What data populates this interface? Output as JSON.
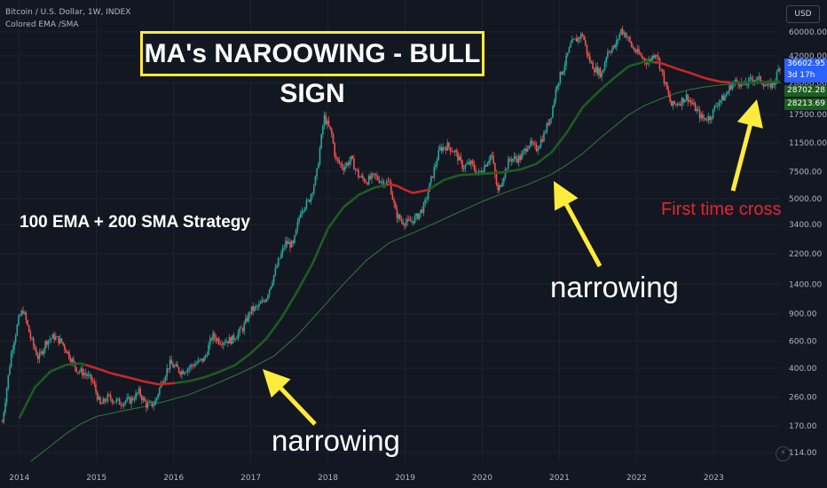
{
  "header": {
    "symbol_line": "Bitcoin / U.S. Dollar, 1W, INDEX",
    "indicator_line": "Colored EMA /SMA"
  },
  "title": "MA's NAROOWING - BULL SIGN",
  "strategy_label": "100 EMA + 200 SMA Strategy",
  "annotations": {
    "narrowing_1": "narrowing",
    "narrowing_2": "narrowing",
    "first_cross": "First time cross"
  },
  "price_scale": {
    "currency": "USD",
    "current_price": "36602.95",
    "countdown": "3d 17h",
    "ema_value": "28702.28",
    "sma_value": "28213.69",
    "ticks": [
      "60000.00",
      "42000.00",
      "28000.00",
      "17500.00",
      "11500.00",
      "7500.00",
      "5000.00",
      "3400.00",
      "2200.00",
      "1400.00",
      "900.00",
      "600.00",
      "400.00",
      "260.00",
      "170.00",
      "114.00"
    ]
  },
  "colors": {
    "background": "#131722",
    "candle_up": "#26a69a",
    "candle_down": "#ef5350",
    "ema_bull": "#1b5e20",
    "ema_bear": "#c62828",
    "sma": "#2e7d32",
    "arrow": "#ffeb3b",
    "cross_text": "#e8242c"
  },
  "chart_data": {
    "type": "line",
    "scale": "log",
    "x_axis_labels": [
      "2014",
      "2015",
      "2016",
      "2017",
      "2018",
      "2019",
      "2020",
      "2021",
      "2022",
      "2023"
    ],
    "y_ticks": [
      60000,
      42000,
      28000,
      17500,
      11500,
      7500,
      5000,
      3400,
      2200,
      1400,
      900,
      600,
      400,
      260,
      170,
      114
    ],
    "ylim": [
      100,
      75000
    ],
    "xlim": [
      2013.75,
      2023.87
    ],
    "series": [
      {
        "key": "price",
        "points": [
          [
            2013.78,
            180
          ],
          [
            2013.9,
            520
          ],
          [
            2014.0,
            860
          ],
          [
            2014.05,
            950
          ],
          [
            2014.15,
            620
          ],
          [
            2014.25,
            460
          ],
          [
            2014.35,
            600
          ],
          [
            2014.45,
            640
          ],
          [
            2014.55,
            590
          ],
          [
            2014.65,
            480
          ],
          [
            2014.75,
            390
          ],
          [
            2014.85,
            370
          ],
          [
            2014.95,
            330
          ],
          [
            2015.05,
            230
          ],
          [
            2015.15,
            260
          ],
          [
            2015.3,
            240
          ],
          [
            2015.45,
            250
          ],
          [
            2015.55,
            280
          ],
          [
            2015.65,
            230
          ],
          [
            2015.75,
            235
          ],
          [
            2015.85,
            330
          ],
          [
            2015.95,
            430
          ],
          [
            2016.1,
            380
          ],
          [
            2016.25,
            420
          ],
          [
            2016.4,
            460
          ],
          [
            2016.5,
            650
          ],
          [
            2016.6,
            600
          ],
          [
            2016.75,
            610
          ],
          [
            2016.9,
            730
          ],
          [
            2017.0,
            950
          ],
          [
            2017.1,
            1000
          ],
          [
            2017.2,
            1150
          ],
          [
            2017.35,
            1900
          ],
          [
            2017.45,
            2600
          ],
          [
            2017.55,
            2500
          ],
          [
            2017.65,
            4300
          ],
          [
            2017.75,
            4800
          ],
          [
            2017.85,
            7000
          ],
          [
            2017.95,
            17000
          ],
          [
            2018.05,
            13000
          ],
          [
            2018.1,
            9000
          ],
          [
            2018.2,
            8000
          ],
          [
            2018.3,
            9000
          ],
          [
            2018.4,
            7000
          ],
          [
            2018.5,
            6500
          ],
          [
            2018.6,
            7000
          ],
          [
            2018.7,
            6500
          ],
          [
            2018.8,
            6300
          ],
          [
            2018.88,
            4000
          ],
          [
            2018.95,
            3600
          ],
          [
            2019.05,
            3500
          ],
          [
            2019.15,
            3800
          ],
          [
            2019.25,
            4500
          ],
          [
            2019.35,
            7000
          ],
          [
            2019.45,
            10500
          ],
          [
            2019.55,
            11000
          ],
          [
            2019.65,
            10000
          ],
          [
            2019.75,
            8000
          ],
          [
            2019.85,
            8500
          ],
          [
            2019.95,
            7200
          ],
          [
            2020.05,
            8500
          ],
          [
            2020.12,
            9800
          ],
          [
            2020.2,
            5500
          ],
          [
            2020.25,
            6500
          ],
          [
            2020.35,
            9000
          ],
          [
            2020.5,
            9200
          ],
          [
            2020.6,
            11500
          ],
          [
            2020.7,
            10500
          ],
          [
            2020.8,
            13000
          ],
          [
            2020.9,
            18000
          ],
          [
            2020.97,
            28000
          ],
          [
            2021.05,
            35000
          ],
          [
            2021.15,
            50000
          ],
          [
            2021.3,
            58000
          ],
          [
            2021.38,
            40000
          ],
          [
            2021.45,
            35000
          ],
          [
            2021.55,
            32000
          ],
          [
            2021.62,
            45000
          ],
          [
            2021.72,
            48000
          ],
          [
            2021.8,
            62000
          ],
          [
            2021.87,
            57000
          ],
          [
            2021.95,
            47000
          ],
          [
            2022.05,
            42000
          ],
          [
            2022.15,
            38000
          ],
          [
            2022.25,
            45000
          ],
          [
            2022.35,
            30000
          ],
          [
            2022.45,
            20000
          ],
          [
            2022.55,
            21000
          ],
          [
            2022.65,
            23000
          ],
          [
            2022.75,
            19500
          ],
          [
            2022.85,
            16500
          ],
          [
            2022.95,
            16800
          ],
          [
            2023.05,
            21000
          ],
          [
            2023.15,
            23000
          ],
          [
            2023.22,
            27000
          ],
          [
            2023.3,
            29000
          ],
          [
            2023.4,
            27000
          ],
          [
            2023.5,
            30000
          ],
          [
            2023.6,
            29500
          ],
          [
            2023.7,
            26500
          ],
          [
            2023.78,
            28000
          ],
          [
            2023.84,
            34500
          ],
          [
            2023.87,
            36600
          ]
        ]
      },
      {
        "key": "ema100",
        "points": [
          [
            2014.0,
            190
          ],
          [
            2014.2,
            300
          ],
          [
            2014.4,
            380
          ],
          [
            2014.6,
            420
          ],
          [
            2014.8,
            430
          ],
          [
            2015.0,
            400
          ],
          [
            2015.2,
            370
          ],
          [
            2015.4,
            350
          ],
          [
            2015.6,
            330
          ],
          [
            2015.8,
            315
          ],
          [
            2016.0,
            320
          ],
          [
            2016.2,
            330
          ],
          [
            2016.4,
            350
          ],
          [
            2016.6,
            380
          ],
          [
            2016.8,
            420
          ],
          [
            2017.0,
            500
          ],
          [
            2017.2,
            620
          ],
          [
            2017.4,
            850
          ],
          [
            2017.6,
            1250
          ],
          [
            2017.8,
            1900
          ],
          [
            2018.0,
            3200
          ],
          [
            2018.2,
            4400
          ],
          [
            2018.4,
            5300
          ],
          [
            2018.6,
            5900
          ],
          [
            2018.8,
            6200
          ],
          [
            2018.9,
            6050
          ],
          [
            2019.0,
            5700
          ],
          [
            2019.1,
            5450
          ],
          [
            2019.3,
            5700
          ],
          [
            2019.5,
            6600
          ],
          [
            2019.7,
            7100
          ],
          [
            2019.9,
            7200
          ],
          [
            2020.1,
            7300
          ],
          [
            2020.3,
            7450
          ],
          [
            2020.5,
            7750
          ],
          [
            2020.7,
            8400
          ],
          [
            2020.9,
            10000
          ],
          [
            2021.1,
            13500
          ],
          [
            2021.3,
            19500
          ],
          [
            2021.5,
            24500
          ],
          [
            2021.7,
            30000
          ],
          [
            2021.9,
            36000
          ],
          [
            2022.1,
            38500
          ],
          [
            2022.3,
            38000
          ],
          [
            2022.5,
            35000
          ],
          [
            2022.7,
            32500
          ],
          [
            2022.9,
            30000
          ],
          [
            2023.1,
            28500
          ],
          [
            2023.3,
            28100
          ],
          [
            2023.5,
            28200
          ],
          [
            2023.7,
            28400
          ],
          [
            2023.87,
            28702
          ]
        ]
      },
      {
        "key": "sma200",
        "points": [
          [
            2014.15,
            100
          ],
          [
            2014.4,
            125
          ],
          [
            2014.6,
            150
          ],
          [
            2014.8,
            175
          ],
          [
            2015.0,
            195
          ],
          [
            2015.3,
            210
          ],
          [
            2015.6,
            225
          ],
          [
            2015.9,
            245
          ],
          [
            2016.2,
            270
          ],
          [
            2016.5,
            310
          ],
          [
            2016.8,
            360
          ],
          [
            2017.0,
            400
          ],
          [
            2017.3,
            480
          ],
          [
            2017.6,
            650
          ],
          [
            2017.9,
            950
          ],
          [
            2018.2,
            1400
          ],
          [
            2018.5,
            2000
          ],
          [
            2018.8,
            2600
          ],
          [
            2019.1,
            3000
          ],
          [
            2019.4,
            3500
          ],
          [
            2019.7,
            4100
          ],
          [
            2020.0,
            4800
          ],
          [
            2020.3,
            5500
          ],
          [
            2020.6,
            6200
          ],
          [
            2020.9,
            7200
          ],
          [
            2021.1,
            8300
          ],
          [
            2021.3,
            9800
          ],
          [
            2021.5,
            12000
          ],
          [
            2021.7,
            14500
          ],
          [
            2021.9,
            17500
          ],
          [
            2022.1,
            20000
          ],
          [
            2022.3,
            22000
          ],
          [
            2022.5,
            24000
          ],
          [
            2022.7,
            25500
          ],
          [
            2022.9,
            26500
          ],
          [
            2023.1,
            27300
          ],
          [
            2023.3,
            27800
          ],
          [
            2023.5,
            28000
          ],
          [
            2023.7,
            28100
          ],
          [
            2023.87,
            28213
          ]
        ]
      }
    ],
    "ema_bearish_segments": [
      [
        2014.85,
        2016.0
      ],
      [
        2018.75,
        2019.3
      ],
      [
        2022.2,
        2023.2
      ]
    ]
  }
}
